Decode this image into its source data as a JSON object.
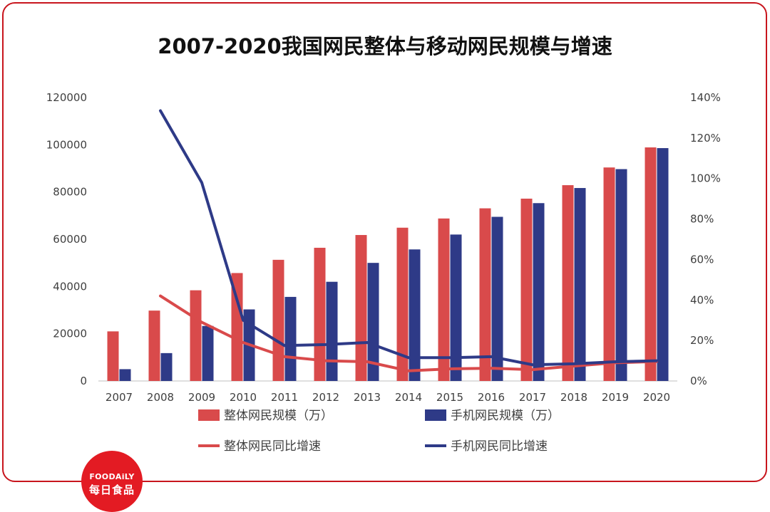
{
  "chart_data": {
    "type": "bar",
    "title": "2007-2020我国网民整体与移动网民规模与增速",
    "categories": [
      "2007",
      "2008",
      "2009",
      "2010",
      "2011",
      "2012",
      "2013",
      "2014",
      "2015",
      "2016",
      "2017",
      "2018",
      "2019",
      "2020"
    ],
    "series": [
      {
        "name": "整体网民规模（万）",
        "kind": "bar",
        "axis": "left",
        "color": "#d94a4b",
        "values": [
          21000,
          29800,
          38400,
          45700,
          51300,
          56400,
          61800,
          64900,
          68800,
          73100,
          77200,
          82900,
          90400,
          98900
        ]
      },
      {
        "name": "手机网民规模（万）",
        "kind": "bar",
        "axis": "left",
        "color": "#2e3a87",
        "values": [
          5000,
          11800,
          23300,
          30300,
          35600,
          42000,
          50000,
          55700,
          62000,
          69500,
          75300,
          81700,
          89700,
          98600
        ]
      },
      {
        "name": "整体网民同比增速",
        "kind": "line",
        "axis": "right",
        "color": "#d94a4b",
        "values": [
          null,
          0.42,
          0.29,
          0.19,
          0.12,
          0.1,
          0.095,
          0.05,
          0.06,
          0.063,
          0.056,
          0.074,
          0.09,
          0.096
        ]
      },
      {
        "name": "手机网民同比增速",
        "kind": "line",
        "axis": "right",
        "color": "#2e3a87",
        "values": [
          null,
          1.335,
          0.98,
          0.3,
          0.175,
          0.18,
          0.19,
          0.115,
          0.115,
          0.12,
          0.08,
          0.085,
          0.095,
          0.1
        ]
      }
    ],
    "ylim_left": [
      0,
      120000
    ],
    "yticks_left": [
      "0",
      "20000",
      "40000",
      "60000",
      "80000",
      "100000",
      "120000"
    ],
    "ylim_right": [
      0,
      1.4
    ],
    "yticks_right": [
      "0%",
      "20%",
      "40%",
      "60%",
      "80%",
      "100%",
      "120%",
      "140%"
    ],
    "grid": false,
    "legend_position": "bottom"
  },
  "logo": {
    "text_en": "FOODAiLY",
    "text_cn": "每日食品"
  },
  "colors": {
    "frame": "#c8151d",
    "logo_bg": "#e31b23"
  }
}
